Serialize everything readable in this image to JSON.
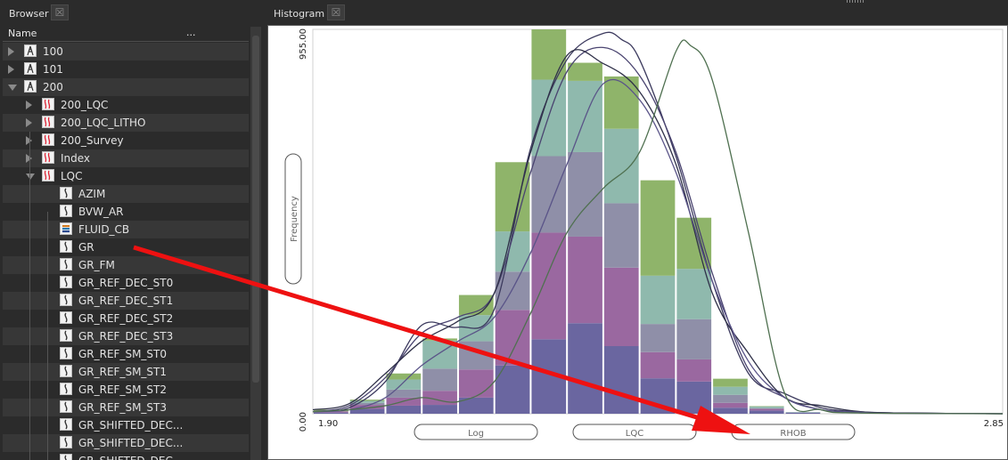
{
  "panels": {
    "browser_title": "Browser",
    "histogram_title": "Histogram",
    "close_glyph": "☒"
  },
  "browser": {
    "col_name": "Name",
    "col_more": "...",
    "tree": [
      {
        "label": "100",
        "level": 0,
        "expander": "collapsed",
        "icon": "well-icon"
      },
      {
        "label": "101",
        "level": 0,
        "expander": "collapsed",
        "icon": "well-icon"
      },
      {
        "label": "200",
        "level": 0,
        "expander": "expanded",
        "icon": "well-icon"
      },
      {
        "label": "200_LQC",
        "level": 1,
        "expander": "collapsed",
        "icon": "log-set-icon"
      },
      {
        "label": "200_LQC_LITHO",
        "level": 1,
        "expander": "collapsed",
        "icon": "log-set-icon"
      },
      {
        "label": "200_Survey",
        "level": 1,
        "expander": "collapsed",
        "icon": "log-set-icon"
      },
      {
        "label": "Index",
        "level": 1,
        "expander": "collapsed",
        "icon": "log-set-icon"
      },
      {
        "label": "LQC",
        "level": 1,
        "expander": "expanded",
        "icon": "log-set-icon"
      },
      {
        "label": "AZIM",
        "level": 2,
        "expander": "none",
        "icon": "log-curve-icon"
      },
      {
        "label": "BVW_AR",
        "level": 2,
        "expander": "none",
        "icon": "log-curve-icon"
      },
      {
        "label": "FLUID_CB",
        "level": 2,
        "expander": "none",
        "icon": "discrete-log-icon"
      },
      {
        "label": "GR",
        "level": 2,
        "expander": "none",
        "icon": "log-curve-icon"
      },
      {
        "label": "GR_FM",
        "level": 2,
        "expander": "none",
        "icon": "log-curve-icon"
      },
      {
        "label": "GR_REF_DEC_ST0",
        "level": 2,
        "expander": "none",
        "icon": "log-curve-icon"
      },
      {
        "label": "GR_REF_DEC_ST1",
        "level": 2,
        "expander": "none",
        "icon": "log-curve-icon"
      },
      {
        "label": "GR_REF_DEC_ST2",
        "level": 2,
        "expander": "none",
        "icon": "log-curve-icon"
      },
      {
        "label": "GR_REF_DEC_ST3",
        "level": 2,
        "expander": "none",
        "icon": "log-curve-icon"
      },
      {
        "label": "GR_REF_SM_ST0",
        "level": 2,
        "expander": "none",
        "icon": "log-curve-icon"
      },
      {
        "label": "GR_REF_SM_ST1",
        "level": 2,
        "expander": "none",
        "icon": "log-curve-icon"
      },
      {
        "label": "GR_REF_SM_ST2",
        "level": 2,
        "expander": "none",
        "icon": "log-curve-icon"
      },
      {
        "label": "GR_REF_SM_ST3",
        "level": 2,
        "expander": "none",
        "icon": "log-curve-icon"
      },
      {
        "label": "GR_SHIFTED_DEC...",
        "level": 2,
        "expander": "none",
        "icon": "log-curve-icon"
      },
      {
        "label": "GR_SHIFTED_DEC...",
        "level": 2,
        "expander": "none",
        "icon": "log-curve-icon"
      },
      {
        "label": "GR_SHIFTED_DEC...",
        "level": 2,
        "expander": "none",
        "icon": "log-curve-icon"
      }
    ]
  },
  "histogram": {
    "y_axis_button": "Frequency",
    "x_buttons": [
      "Log",
      "LQC",
      "RHOB"
    ],
    "colors": {
      "layer_top": "#8fb46a",
      "layer_2": "#8fb9ad",
      "layer_3": "#8f8fa8",
      "layer_4": "#9a68a0",
      "layer_bottom": "#6a66a0",
      "curves": [
        "#3c3a5e",
        "#4a4470",
        "#2f3048",
        "#5a5488",
        "#4f7050"
      ],
      "annotation_arrow": "#ee1111"
    }
  },
  "chart_data": {
    "type": "bar",
    "xlabel": "",
    "ylabel": "Frequency",
    "xlim": [
      1.9,
      2.85
    ],
    "ylim": [
      0.0,
      955.0
    ],
    "x_tick_labels": [
      "1.90",
      "2.85"
    ],
    "y_tick_labels": [
      "0.00",
      "955.00"
    ],
    "grid": false,
    "stacked": true,
    "categories": [
      "1.90-1.95",
      "1.95-2.00",
      "2.00-2.05",
      "2.05-2.10",
      "2.10-2.15",
      "2.15-2.20",
      "2.20-2.25",
      "2.25-2.30",
      "2.30-2.35",
      "2.35-2.40",
      "2.40-2.45",
      "2.45-2.50",
      "2.50-2.55",
      "2.55-2.60",
      "2.60-2.65",
      "2.65-2.70",
      "2.70-2.75",
      "2.75-2.80",
      "2.80-2.85"
    ],
    "series": [
      {
        "values": [
          3,
          12,
          20,
          22,
          40,
          120,
          185,
          225,
          168,
          88,
          80,
          15,
          8,
          3,
          0,
          0,
          0,
          0,
          0
        ]
      },
      {
        "values": [
          3,
          10,
          20,
          35,
          70,
          138,
          265,
          215,
          195,
          65,
          55,
          12,
          4,
          0,
          0,
          0,
          0,
          0,
          0
        ]
      },
      {
        "values": [
          0,
          5,
          20,
          55,
          70,
          95,
          190,
          210,
          160,
          70,
          100,
          20,
          2,
          0,
          0,
          0,
          0,
          0,
          0
        ]
      },
      {
        "values": [
          0,
          5,
          25,
          70,
          65,
          100,
          190,
          177,
          185,
          120,
          125,
          20,
          4,
          1,
          0,
          0,
          0,
          0,
          0
        ]
      },
      {
        "values": [
          4,
          3,
          15,
          5,
          50,
          172,
          125,
          45,
          130,
          237,
          127,
          20,
          1,
          0,
          0,
          0,
          0,
          0,
          0
        ]
      }
    ],
    "curves": [
      {
        "x": [
          1.9,
          1.95,
          2.0,
          2.05,
          2.1,
          2.15,
          2.2,
          2.25,
          2.3,
          2.325,
          2.35,
          2.4,
          2.45,
          2.5,
          2.55,
          2.6,
          2.65,
          2.7,
          2.85
        ],
        "y": [
          5,
          15,
          80,
          220,
          215,
          260,
          660,
          880,
          945,
          930,
          880,
          640,
          330,
          100,
          50,
          15,
          5,
          2,
          0
        ]
      },
      {
        "x": [
          1.9,
          1.95,
          2.0,
          2.05,
          2.1,
          2.15,
          2.2,
          2.25,
          2.3,
          2.35,
          2.4,
          2.45,
          2.5,
          2.55,
          2.6,
          2.65,
          2.7,
          2.85
        ],
        "y": [
          5,
          20,
          90,
          200,
          240,
          300,
          600,
          850,
          910,
          840,
          650,
          350,
          110,
          40,
          10,
          5,
          2,
          0
        ]
      },
      {
        "x": [
          1.9,
          1.95,
          2.0,
          2.05,
          2.1,
          2.15,
          2.2,
          2.25,
          2.3,
          2.35,
          2.4,
          2.45,
          2.5,
          2.55,
          2.6,
          2.65,
          2.7,
          2.85
        ],
        "y": [
          10,
          25,
          100,
          180,
          230,
          300,
          650,
          890,
          870,
          800,
          620,
          300,
          150,
          40,
          20,
          6,
          2,
          0
        ]
      },
      {
        "x": [
          1.9,
          1.95,
          2.0,
          2.05,
          2.1,
          2.15,
          2.2,
          2.25,
          2.3,
          2.35,
          2.4,
          2.45,
          2.5,
          2.55,
          2.6,
          2.65,
          2.7,
          2.85
        ],
        "y": [
          5,
          10,
          40,
          120,
          180,
          240,
          400,
          620,
          820,
          780,
          600,
          330,
          130,
          40,
          10,
          4,
          1,
          0
        ]
      },
      {
        "x": [
          1.9,
          1.95,
          2.0,
          2.05,
          2.1,
          2.15,
          2.2,
          2.25,
          2.3,
          2.35,
          2.4,
          2.42,
          2.45,
          2.5,
          2.55,
          2.6,
          2.65,
          2.85
        ],
        "y": [
          5,
          10,
          20,
          40,
          30,
          80,
          250,
          450,
          560,
          650,
          900,
          915,
          830,
          450,
          50,
          10,
          2,
          0
        ]
      }
    ]
  }
}
